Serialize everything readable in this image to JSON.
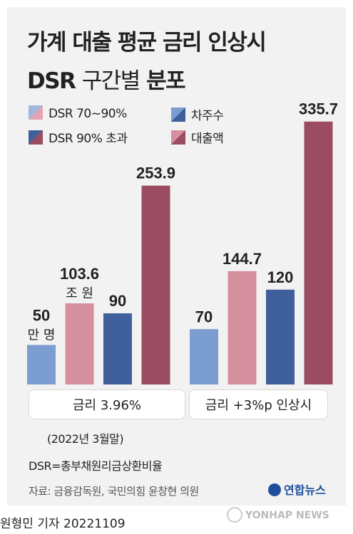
{
  "title": {
    "line1": "가계 대출 평균 금리 인상시",
    "line2_bold": "DSR",
    "line2_light": "구간별",
    "line2_end": "분포"
  },
  "legend": [
    {
      "label": "DSR 70~90%",
      "color": "#c98a99"
    },
    {
      "label": "차주수",
      "color": "#5c7fb5"
    },
    {
      "label": "DSR 90% 초과",
      "color": "#8c4b63"
    },
    {
      "label": "대출액",
      "color": "#b06078"
    }
  ],
  "chart_data": {
    "type": "bar",
    "categories": [
      "금리 3.96%",
      "금리 +3%p 인상시"
    ],
    "series_order": [
      "차주수 DSR 70~90%",
      "대출액 DSR 70~90%",
      "차주수 DSR 90% 초과",
      "대출액 DSR 90% 초과"
    ],
    "bars": [
      {
        "group": 0,
        "value": 50,
        "label": "50",
        "unit": "만 명",
        "color": "#7b9dcf",
        "scale": "borrowers"
      },
      {
        "group": 0,
        "value": 103.6,
        "label": "103.6",
        "unit": "조 원",
        "color": "#d5909f",
        "scale": "loans"
      },
      {
        "group": 0,
        "value": 90,
        "label": "90",
        "unit": "",
        "color": "#3f609a",
        "scale": "borrowers"
      },
      {
        "group": 0,
        "value": 253.9,
        "label": "253.9",
        "unit": "",
        "color": "#9b4c63",
        "scale": "loans"
      },
      {
        "group": 1,
        "value": 70,
        "label": "70",
        "unit": "",
        "color": "#7b9dcf",
        "scale": "borrowers"
      },
      {
        "group": 1,
        "value": 144.7,
        "label": "144.7",
        "unit": "",
        "color": "#d5909f",
        "scale": "loans"
      },
      {
        "group": 1,
        "value": 120,
        "label": "120",
        "unit": "",
        "color": "#3f609a",
        "scale": "borrowers"
      },
      {
        "group": 1,
        "value": 335.7,
        "label": "335.7",
        "unit": "",
        "color": "#9b4c63",
        "scale": "loans"
      }
    ]
  },
  "group_labels": [
    "금리 3.96%",
    "금리 +3%p 인상시"
  ],
  "date_note": "(2022년 3월말)",
  "definition": "DSR=총부채원리금상환비율",
  "source": "자료: 금융감독원, 국민의힘 윤창현 의원",
  "logo_text": "연합뉴스",
  "byline": "원형민 기자  20221109",
  "watermark": "YONHAP NEWS"
}
